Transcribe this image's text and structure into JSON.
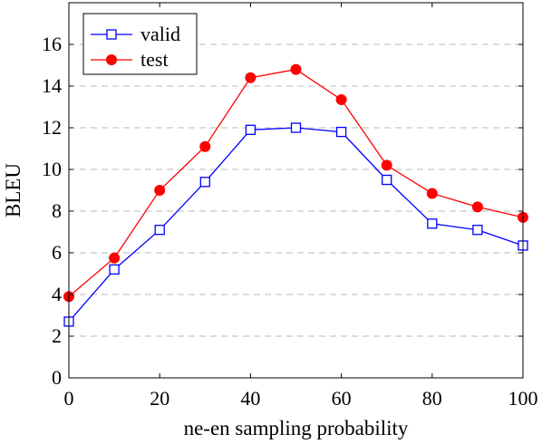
{
  "chart_data": {
    "type": "line",
    "title": "",
    "xlabel": "ne-en sampling probability",
    "ylabel": "BLEU",
    "xlim": [
      0,
      100
    ],
    "ylim": [
      0,
      18
    ],
    "x_ticks": [
      0,
      20,
      40,
      60,
      80,
      100
    ],
    "y_ticks": [
      0,
      2,
      4,
      6,
      8,
      10,
      12,
      14,
      16
    ],
    "grid": "horizontal dashed",
    "legend_position": "top-left",
    "x": [
      0,
      10,
      20,
      30,
      40,
      50,
      60,
      70,
      80,
      90,
      100
    ],
    "series": [
      {
        "name": "valid",
        "color": "#0000ff",
        "marker": "open-square",
        "values": [
          2.7,
          5.2,
          7.1,
          9.4,
          11.9,
          12.0,
          11.8,
          9.5,
          7.4,
          7.1,
          6.35
        ]
      },
      {
        "name": "test",
        "color": "#ff0000",
        "marker": "filled-circle",
        "values": [
          3.9,
          5.75,
          9.0,
          11.1,
          14.4,
          14.8,
          13.35,
          10.2,
          8.85,
          8.2,
          7.7
        ]
      }
    ]
  }
}
